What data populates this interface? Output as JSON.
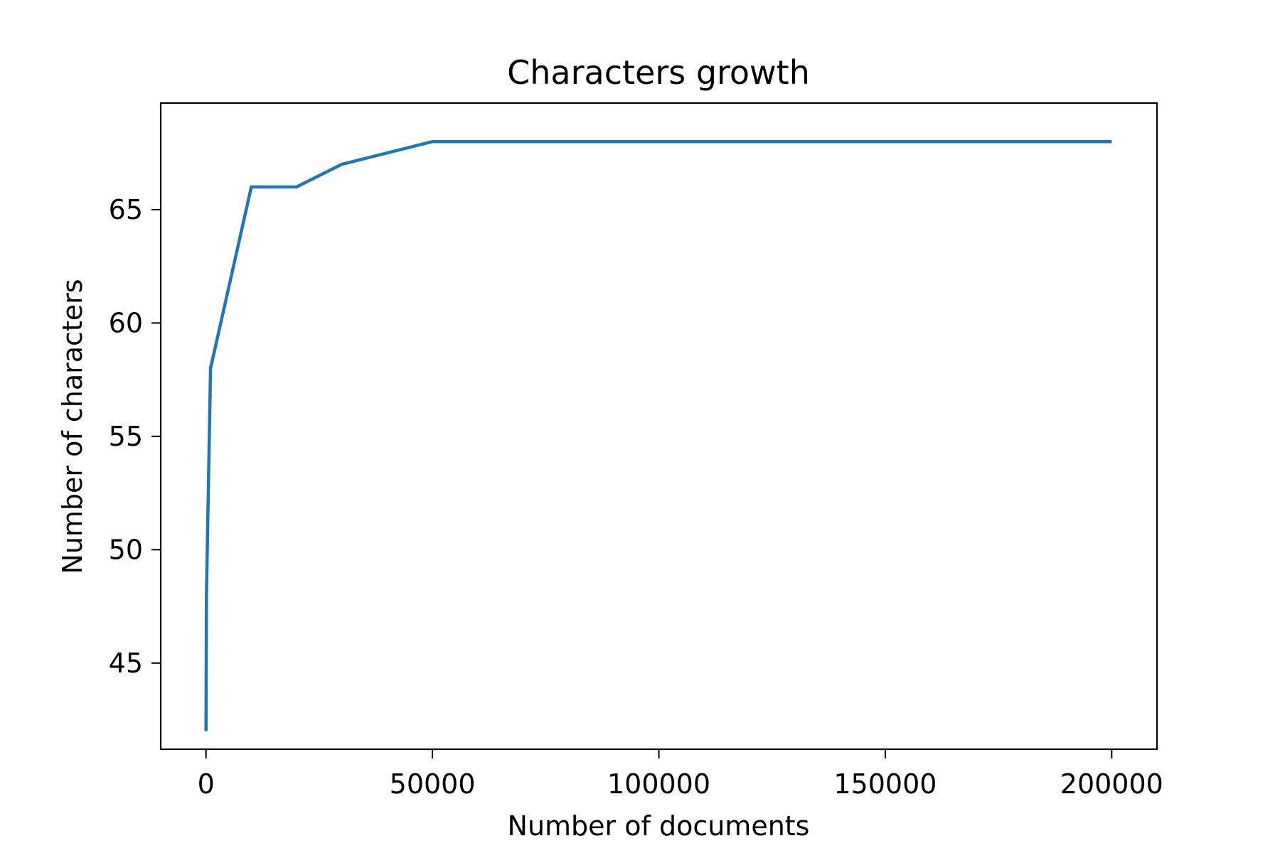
{
  "chart_data": {
    "type": "line",
    "title": "Characters growth",
    "xlabel": "Number of documents",
    "ylabel": "Number of characters",
    "xlim": [
      -10000,
      210000
    ],
    "ylim": [
      41.2,
      69.7
    ],
    "xticks": [
      0,
      50000,
      100000,
      150000,
      200000
    ],
    "xtick_labels": [
      "0",
      "50000",
      "100000",
      "150000",
      "200000"
    ],
    "yticks": [
      45,
      50,
      55,
      60,
      65
    ],
    "ytick_labels": [
      "45",
      "50",
      "55",
      "60",
      "65"
    ],
    "grid": false,
    "series": [
      {
        "color": "#1f77b4",
        "x": [
          0,
          100,
          1000,
          10000,
          20000,
          30000,
          50000,
          100000,
          150000,
          200000
        ],
        "y": [
          42,
          48,
          58,
          66,
          66,
          67,
          68,
          68,
          68,
          68
        ]
      }
    ]
  }
}
